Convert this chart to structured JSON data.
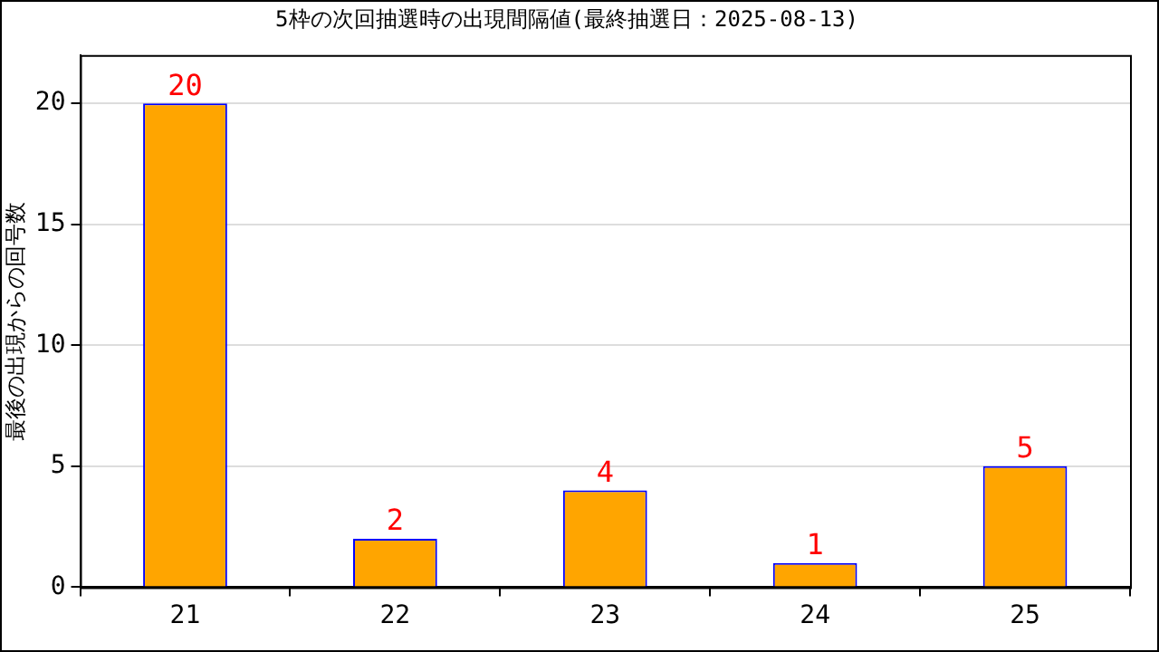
{
  "chart_data": {
    "type": "bar",
    "title": "5枠の次回抽選時の出現間隔値(最終抽選日：2025-08-13)",
    "ylabel": "最後の出現からの回号数",
    "categories": [
      "21",
      "22",
      "23",
      "24",
      "25"
    ],
    "values": [
      20,
      2,
      4,
      1,
      5
    ],
    "color": "#ffa500",
    "ylim": [
      0,
      22
    ],
    "yticks": [
      0,
      5,
      10,
      15,
      20
    ],
    "grid": "y",
    "data_labels": true
  }
}
